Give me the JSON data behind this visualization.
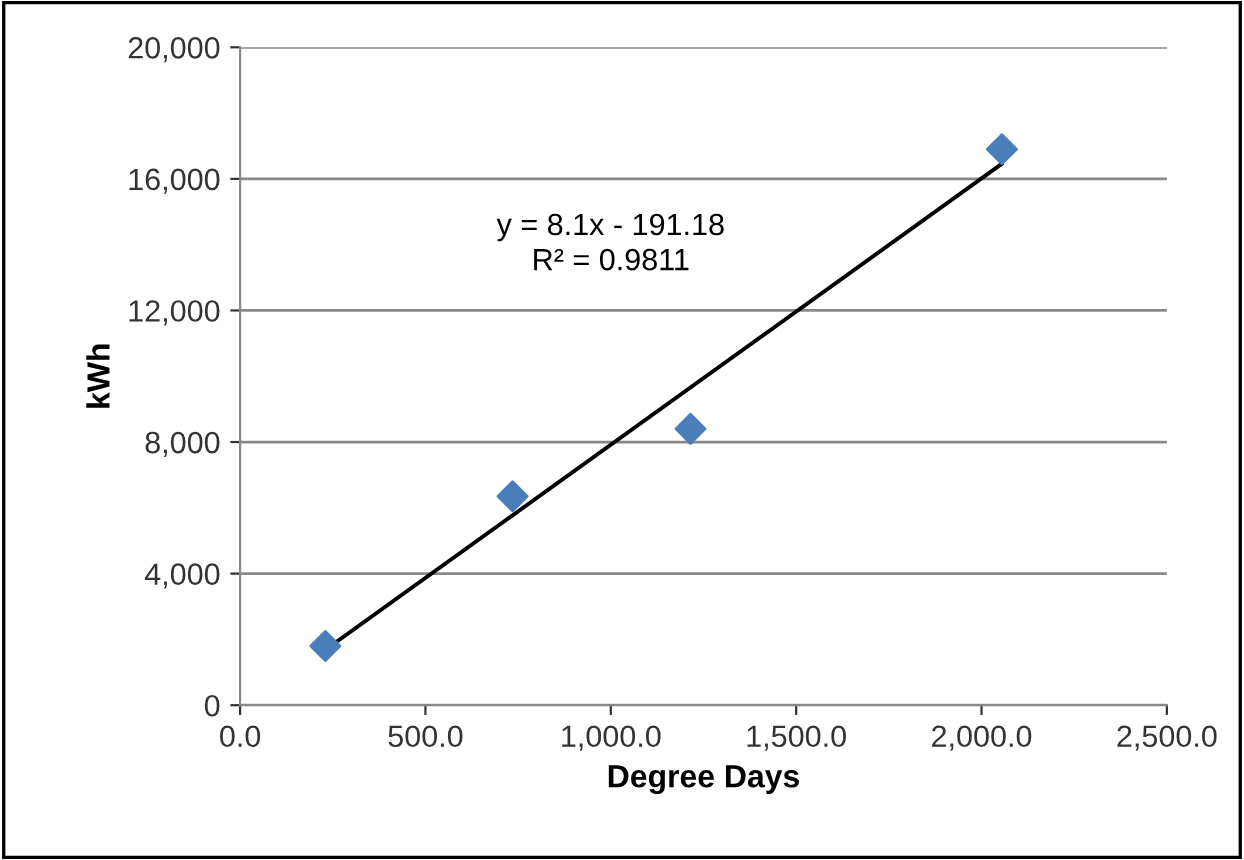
{
  "chart_data": {
    "type": "scatter",
    "xlabel": "Degree Days",
    "ylabel": "kWh",
    "series": [
      {
        "color": "#4a7ebb",
        "marker": "diamond",
        "x": [
          230,
          735,
          1215,
          2055
        ],
        "values": [
          1800,
          6350,
          8400,
          16900
        ]
      },
      {
        "type": "line",
        "color": "#000000",
        "marker": "none",
        "line_style": "solid",
        "x": [
          232,
          2054
        ],
        "values": [
          1700,
          16450
        ]
      }
    ],
    "annotations": [
      "y = 8.1x - 191.18\nR² = 0.9811"
    ],
    "xlim": [
      0,
      2500
    ],
    "ylim": [
      0,
      20000
    ],
    "xticks": [
      {
        "value": 0,
        "label": "0.0"
      },
      {
        "value": 500,
        "label": "500.0"
      },
      {
        "value": 1000,
        "label": "1,000.0"
      },
      {
        "value": 1500,
        "label": "1,500.0"
      },
      {
        "value": 2000,
        "label": "2,000.0"
      },
      {
        "value": 2500,
        "label": "2,500.0"
      }
    ],
    "yticks": [
      {
        "value": 0,
        "label": "0"
      },
      {
        "value": 4000,
        "label": "4,000"
      },
      {
        "value": 8000,
        "label": "8,000"
      },
      {
        "value": 12000,
        "label": "12,000"
      },
      {
        "value": 16000,
        "label": "16,000"
      },
      {
        "value": 20000,
        "label": "20,000"
      }
    ],
    "grid": "y"
  }
}
